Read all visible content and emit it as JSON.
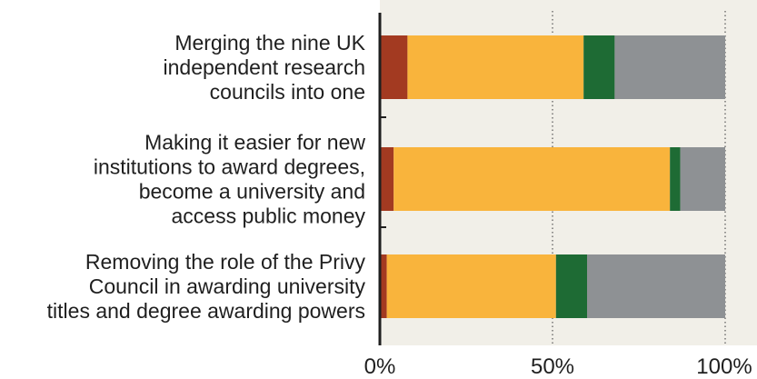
{
  "chart_data": {
    "type": "bar",
    "orientation": "horizontal",
    "stacked": true,
    "categories": [
      [
        "Merging the nine UK",
        "independent research",
        "councils into one"
      ],
      [
        "Making it easier for new",
        "institutions to award degrees,",
        "become a university and",
        "access public money"
      ],
      [
        "Removing the role of the Privy",
        "Council in awarding university",
        "titles and degree awarding powers"
      ]
    ],
    "series": [
      {
        "color": "#a33a21",
        "values": [
          8,
          4,
          2
        ]
      },
      {
        "color": "#f9b43c",
        "values": [
          51,
          80,
          49
        ]
      },
      {
        "color": "#1e6b34",
        "values": [
          9,
          3,
          9
        ]
      },
      {
        "color": "#8e9194",
        "values": [
          32,
          13,
          40
        ]
      }
    ],
    "xlim": [
      0,
      100
    ],
    "xticks": [
      0,
      50,
      100
    ],
    "xtick_labels": [
      "0%",
      "50%",
      "100%"
    ],
    "grid": "vertical dotted at 50% and 100%",
    "background_color": "#f1efe8"
  }
}
